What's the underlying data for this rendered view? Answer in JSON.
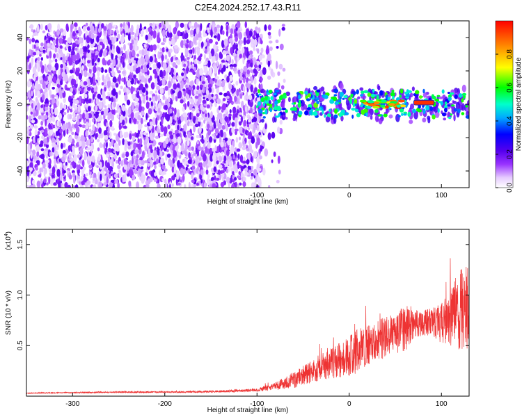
{
  "title": "C2E4.2024.252.17.43.R11",
  "chart_data": [
    {
      "type": "heatmap",
      "xlabel": "Height of straight line (km)",
      "ylabel": "Frequency (Hz)",
      "xlim": [
        -350,
        130
      ],
      "ylim": [
        -50,
        50
      ],
      "xticks": [
        -300,
        -200,
        -100,
        0,
        100
      ],
      "yticks": [
        -40,
        -20,
        0,
        20,
        40
      ],
      "colorbar": {
        "label": "Normalized spectral amplitude",
        "range": [
          0,
          1
        ],
        "ticks": [
          "0.0",
          "0.2",
          "0.4",
          "0.6",
          "0.8"
        ],
        "colormap": [
          "#ffffff",
          "#e6ccff",
          "#9933ff",
          "#5500ee",
          "#0000ff",
          "#00aaff",
          "#00ffcc",
          "#00ff00",
          "#ffff00",
          "#ff8800",
          "#ff0000"
        ]
      },
      "regions": [
        {
          "x": [
            -350,
            -95
          ],
          "band_hz": [
            -50,
            48
          ],
          "amplitude": 0.05,
          "note": "scattered noise"
        },
        {
          "x": [
            -95,
            -70
          ],
          "band_hz": [
            -50,
            48
          ],
          "amplitude": 0.03,
          "note": "sparse noise"
        },
        {
          "x": [
            -100,
            130
          ],
          "band_hz": [
            -9,
            9
          ],
          "amplitude": 0.3
        },
        {
          "x": [
            15,
            60
          ],
          "band_hz": [
            -2,
            2
          ],
          "amplitude": 0.7
        },
        {
          "x": [
            70,
            92
          ],
          "band_hz": [
            0,
            2
          ],
          "amplitude": 0.95
        }
      ]
    },
    {
      "type": "line",
      "xlabel": "Height of straight line (km)",
      "ylabel": "SNR (10 * v/v)",
      "y_scale_label": "(x10",
      "y_scale_exp": "4",
      "xlim": [
        -350,
        130
      ],
      "ylim": [
        0,
        1.65
      ],
      "xticks": [
        -300,
        -200,
        -100,
        0,
        100
      ],
      "yticks": [
        "0.5",
        "1.0",
        "1.5"
      ],
      "series": [
        {
          "name": "SNR",
          "color": "#ee3333",
          "x": [
            -350,
            -300,
            -250,
            -200,
            -150,
            -100,
            -80,
            -60,
            -40,
            -20,
            0,
            10,
            20,
            30,
            40,
            50,
            60,
            70,
            80,
            90,
            100,
            110,
            120,
            130
          ],
          "y": [
            0.03,
            0.035,
            0.04,
            0.04,
            0.045,
            0.06,
            0.1,
            0.16,
            0.25,
            0.32,
            0.4,
            0.45,
            0.5,
            0.55,
            0.6,
            0.6,
            0.68,
            0.72,
            0.72,
            0.75,
            0.72,
            0.8,
            0.85,
            0.9
          ],
          "spread": [
            0.005,
            0.006,
            0.008,
            0.008,
            0.01,
            0.015,
            0.04,
            0.08,
            0.12,
            0.15,
            0.2,
            0.22,
            0.2,
            0.2,
            0.22,
            0.18,
            0.25,
            0.15,
            0.12,
            0.15,
            0.2,
            0.3,
            0.4,
            0.45
          ]
        }
      ]
    }
  ]
}
